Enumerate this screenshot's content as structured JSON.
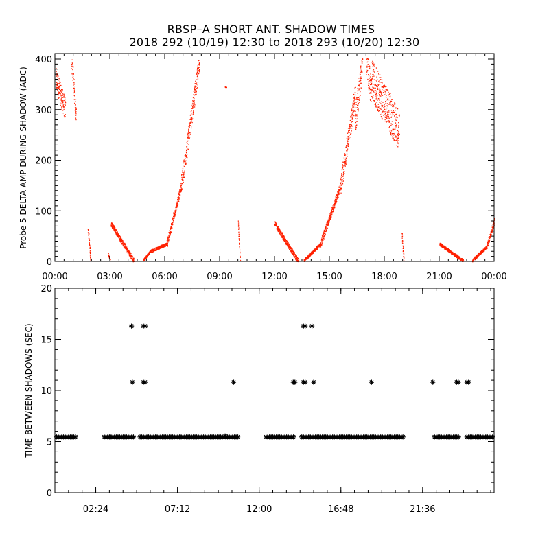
{
  "title": {
    "line1": "RBSP–A SHORT ANT. SHADOW TIMES",
    "line2": "2018 292 (10/19) 12:30 to 2018 293 (10/20) 12:30"
  },
  "colors": {
    "points_top": "#ff2000",
    "points_bottom": "#000000"
  },
  "chart_data": [
    {
      "type": "scatter",
      "ylabel": "Probe 5 DELTA AMP DURING SHADOW (ADC)",
      "xlim": [
        0,
        24
      ],
      "ylim": [
        0,
        400
      ],
      "x_unit": "hours",
      "x_ticks": [
        0,
        3,
        6,
        9,
        12,
        15,
        18,
        21,
        24
      ],
      "x_tick_labels": [
        "00:00",
        "03:00",
        "06:00",
        "09:00",
        "12:00",
        "15:00",
        "18:00",
        "21:00",
        "00:00"
      ],
      "y_ticks": [
        0,
        100,
        200,
        300,
        400
      ],
      "y_tick_labels": [
        "0",
        "100",
        "200",
        "300",
        "400"
      ],
      "grid": false,
      "segments": [
        {
          "x_start": 0.05,
          "x_end": 0.55,
          "y_start": 360,
          "y_end": 300,
          "spread": 45
        },
        {
          "x_start": 0.9,
          "x_end": 1.15,
          "y_start": 400,
          "y_end": 290,
          "spread": 40
        },
        {
          "x_start": 1.8,
          "x_end": 1.95,
          "y_start": 65,
          "y_end": 0,
          "spread": 8
        },
        {
          "x_start": 2.9,
          "x_end": 3.0,
          "y_start": 15,
          "y_end": 5,
          "spread": 4
        },
        {
          "x_start": 3.05,
          "x_end": 4.3,
          "y_start": 75,
          "y_end": 2,
          "spread": 10
        },
        {
          "x_start": 4.8,
          "x_end": 5.2,
          "y_start": 2,
          "y_end": 20,
          "spread": 4
        },
        {
          "x_start": 5.2,
          "x_end": 6.1,
          "y_start": 20,
          "y_end": 35,
          "spread": 6
        },
        {
          "x_start": 6.1,
          "x_end": 6.9,
          "y_start": 35,
          "y_end": 150,
          "spread": 15
        },
        {
          "x_start": 6.9,
          "x_end": 7.9,
          "y_start": 150,
          "y_end": 400,
          "spread": 40
        },
        {
          "x_start": 9.3,
          "x_end": 9.35,
          "y_start": 345,
          "y_end": 345,
          "spread": 2
        },
        {
          "x_start": 10.0,
          "x_end": 10.12,
          "y_start": 80,
          "y_end": 0,
          "spread": 6
        },
        {
          "x_start": 12.0,
          "x_end": 13.3,
          "y_start": 75,
          "y_end": 0,
          "spread": 10
        },
        {
          "x_start": 13.6,
          "x_end": 14.5,
          "y_start": 2,
          "y_end": 35,
          "spread": 6
        },
        {
          "x_start": 14.5,
          "x_end": 15.6,
          "y_start": 35,
          "y_end": 150,
          "spread": 15
        },
        {
          "x_start": 15.6,
          "x_end": 16.4,
          "y_start": 150,
          "y_end": 330,
          "spread": 40
        },
        {
          "x_start": 16.4,
          "x_end": 16.8,
          "y_start": 280,
          "y_end": 400,
          "spread": 60
        },
        {
          "x_start": 17.0,
          "x_end": 17.3,
          "y_start": 400,
          "y_end": 330,
          "spread": 60
        },
        {
          "x_start": 17.3,
          "x_end": 18.8,
          "y_start": 360,
          "y_end": 260,
          "spread": 80
        },
        {
          "x_start": 18.95,
          "x_end": 19.05,
          "y_start": 55,
          "y_end": 5,
          "spread": 6
        },
        {
          "x_start": 21.0,
          "x_end": 22.3,
          "y_start": 35,
          "y_end": 2,
          "spread": 6
        },
        {
          "x_start": 22.8,
          "x_end": 23.6,
          "y_start": 2,
          "y_end": 30,
          "spread": 6
        },
        {
          "x_start": 23.6,
          "x_end": 24.0,
          "y_start": 30,
          "y_end": 80,
          "spread": 12
        }
      ]
    },
    {
      "type": "scatter",
      "ylabel": "TIME BETWEEN SHADOWS (SEC)",
      "xlim": [
        0,
        25.8
      ],
      "ylim": [
        0,
        20
      ],
      "x_unit": "hours",
      "x_ticks": [
        2.4,
        7.2,
        12.0,
        16.8,
        21.6
      ],
      "x_tick_labels": [
        "02:24",
        "07:12",
        "12:00",
        "16:48",
        "21:36"
      ],
      "y_ticks": [
        0,
        5,
        10,
        15,
        20
      ],
      "y_tick_labels": [
        "0",
        "5",
        "10",
        "15",
        "20"
      ],
      "grid": false,
      "marker": "asterisk",
      "baseline_value": 5.45,
      "baseline_ranges": [
        [
          0.1,
          1.3
        ],
        [
          2.9,
          4.7
        ],
        [
          5.0,
          10.8
        ],
        [
          12.4,
          14.1
        ],
        [
          14.5,
          20.5
        ],
        [
          22.3,
          23.8
        ],
        [
          24.2,
          25.8
        ]
      ],
      "points": [
        [
          4.5,
          16.3
        ],
        [
          4.55,
          10.8
        ],
        [
          5.2,
          16.3
        ],
        [
          5.3,
          16.3
        ],
        [
          5.2,
          10.8
        ],
        [
          5.3,
          10.8
        ],
        [
          10.0,
          5.55
        ],
        [
          10.5,
          10.8
        ],
        [
          14.0,
          10.8
        ],
        [
          14.1,
          10.8
        ],
        [
          14.6,
          16.3
        ],
        [
          14.7,
          16.3
        ],
        [
          14.6,
          10.8
        ],
        [
          14.7,
          10.8
        ],
        [
          15.1,
          16.3
        ],
        [
          15.2,
          10.8
        ],
        [
          18.6,
          10.8
        ],
        [
          22.2,
          10.8
        ],
        [
          23.6,
          10.8
        ],
        [
          23.7,
          10.8
        ],
        [
          24.2,
          10.8
        ],
        [
          24.3,
          10.8
        ]
      ]
    }
  ]
}
